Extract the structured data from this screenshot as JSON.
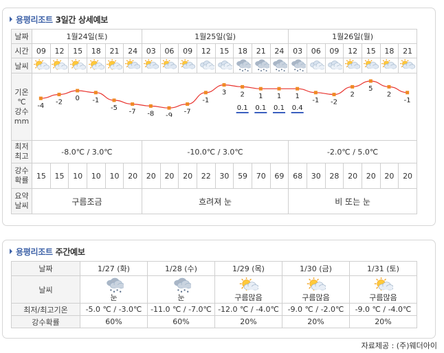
{
  "forecast3": {
    "location": "용평리조트",
    "title_suffix": "3일간 상세예보",
    "labels": {
      "date": "날짜",
      "time": "시간",
      "weather": "날씨",
      "temp_line1": "기온",
      "temp_line2": "℃",
      "precip_line1": "강수",
      "precip_line2": "mm",
      "minmax_line1": "최저",
      "minmax_line2": "최고",
      "pop_line1": "강수",
      "pop_line2": "확률",
      "summary_line1": "요약",
      "summary_line2": "날씨"
    },
    "days": [
      {
        "date": "1월24일(토)",
        "range": "-8.0℃ / 3.0℃",
        "summary": "구름조금"
      },
      {
        "date": "1월25일(일)",
        "range": "-10.0℃ / 3.0℃",
        "summary": "흐려져 눈"
      },
      {
        "date": "1월26일(월)",
        "range": "-2.0℃ / 5.0℃",
        "summary": "비 또는 눈"
      }
    ],
    "hours": [
      "09",
      "12",
      "15",
      "18",
      "21",
      "24",
      "03",
      "06",
      "09",
      "12",
      "15",
      "18",
      "21",
      "24",
      "03",
      "06",
      "09",
      "12",
      "15",
      "18",
      "21"
    ],
    "icons": [
      "sun-cloud",
      "sun-cloud",
      "sun-cloud",
      "sun-cloud",
      "sun-cloud",
      "cloud-sun",
      "cloud-sun",
      "cloud-sun",
      "cloud-sun",
      "cloud",
      "cloud",
      "cloud-snow",
      "cloud-snow",
      "cloud-snow",
      "cloud-snow",
      "cloud",
      "cloud",
      "cloud-sun",
      "cloud-sun",
      "cloud-sun",
      "cloud-sun"
    ],
    "temps": [
      "-4",
      "-2",
      "0",
      "-1",
      "-5",
      "-7",
      "-8",
      "-9",
      "-7",
      "-1",
      "3",
      "2",
      "1",
      "1",
      "1",
      "-1",
      "-2",
      "2",
      "5",
      "2",
      "-1"
    ],
    "precip": [
      "",
      "",
      "",
      "",
      "",
      "",
      "",
      "",
      "",
      "",
      "",
      "0.1",
      "0.1",
      "0.1",
      "0.4",
      "",
      "",
      "",
      "",
      "",
      ""
    ],
    "pop": [
      "15",
      "15",
      "10",
      "10",
      "10",
      "20",
      "20",
      "20",
      "20",
      "22",
      "30",
      "59",
      "70",
      "69",
      "68",
      "30",
      "28",
      "20",
      "20",
      "20",
      "20"
    ],
    "colors": {
      "line": "#e8322d",
      "marker": "#f08a24",
      "precip_bar": "#3a5fbf",
      "title": "#3f63a8"
    }
  },
  "weekly": {
    "location": "용평리조트",
    "title_suffix": "주간예보",
    "labels": {
      "date": "날짜",
      "weather": "날씨",
      "minmax": "최저/최고기온",
      "pop": "강수확률"
    },
    "days": [
      {
        "date": "1/27 (화)",
        "icon": "snow-cloud",
        "weather": "눈",
        "minmax": "-5.0 ℃ / -3.0℃",
        "pop": "60%"
      },
      {
        "date": "1/28 (수)",
        "icon": "snow-cloud",
        "weather": "눈",
        "minmax": "-11.0 ℃ / -7.0℃",
        "pop": "60%"
      },
      {
        "date": "1/29 (목)",
        "icon": "sun-cloud",
        "weather": "구름많음",
        "minmax": "-12.0 ℃ / -4.0℃",
        "pop": "20%"
      },
      {
        "date": "1/30 (금)",
        "icon": "sun-cloud",
        "weather": "구름많음",
        "minmax": "-9.0 ℃ / -2.0℃",
        "pop": "20%"
      },
      {
        "date": "1/31 (토)",
        "icon": "sun-cloud",
        "weather": "구름많음",
        "minmax": "-9.0 ℃ / -4.0℃",
        "pop": "20%"
      }
    ]
  },
  "credit": "자료제공 : (주)웨더아이"
}
